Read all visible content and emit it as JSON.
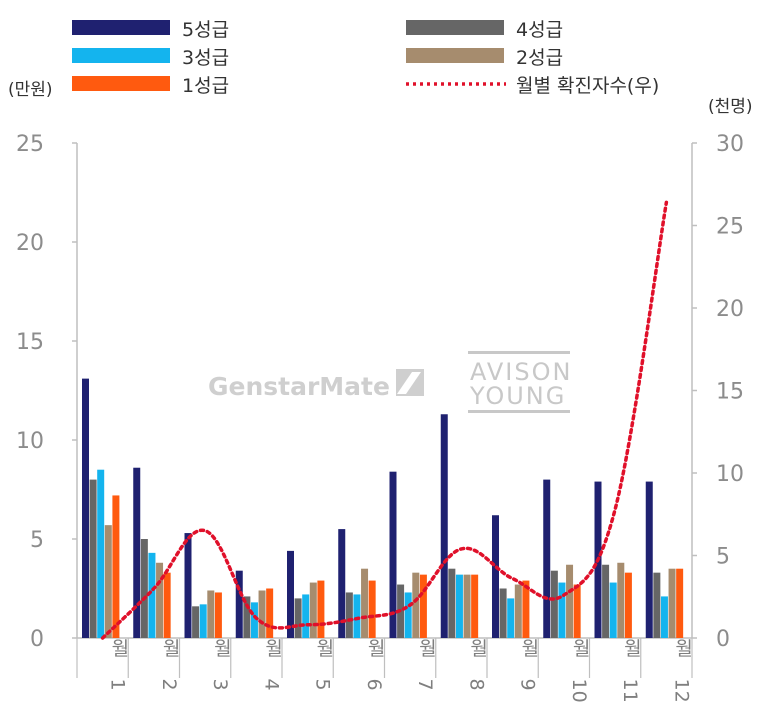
{
  "chart_data": {
    "type": "bar",
    "categories": [
      "1월",
      "2월",
      "3월",
      "4월",
      "5월",
      "6월",
      "7월",
      "8월",
      "9월",
      "10월",
      "11월",
      "12월"
    ],
    "category_numbers": [
      "1",
      "2",
      "3",
      "4",
      "5",
      "6",
      "7",
      "8",
      "9",
      "10",
      "11",
      "12"
    ],
    "category_unit": "월",
    "series": [
      {
        "name": "5성급",
        "color": "#1f2170",
        "axis": "left",
        "kind": "bar",
        "values": [
          13.1,
          8.6,
          5.3,
          3.4,
          4.4,
          5.5,
          8.4,
          11.3,
          6.2,
          8.0,
          7.9,
          7.9
        ]
      },
      {
        "name": "4성급",
        "color": "#666666",
        "axis": "left",
        "kind": "bar",
        "values": [
          8.0,
          5.0,
          1.6,
          2.1,
          2.0,
          2.3,
          2.7,
          3.5,
          2.5,
          3.4,
          3.7,
          3.3
        ]
      },
      {
        "name": "3성급",
        "color": "#14b4ee",
        "axis": "left",
        "kind": "bar",
        "values": [
          8.5,
          4.3,
          1.7,
          1.8,
          2.2,
          2.2,
          2.3,
          3.2,
          2.0,
          2.8,
          2.8,
          2.1
        ]
      },
      {
        "name": "2성급",
        "color": "#a68c6e",
        "axis": "left",
        "kind": "bar",
        "values": [
          5.7,
          3.8,
          2.4,
          2.4,
          2.8,
          3.5,
          3.3,
          3.2,
          2.7,
          3.7,
          3.8,
          3.5
        ]
      },
      {
        "name": "1성급",
        "color": "#ff5a0f",
        "axis": "left",
        "kind": "bar",
        "values": [
          7.2,
          3.3,
          2.3,
          2.5,
          2.9,
          2.9,
          3.2,
          3.2,
          2.9,
          2.7,
          3.3,
          3.5
        ]
      },
      {
        "name": "월별 확진자수(우)",
        "color": "#e0102a",
        "axis": "right",
        "kind": "line",
        "values": [
          0.0,
          3.0,
          6.5,
          1.2,
          0.8,
          1.2,
          2.0,
          5.4,
          3.6,
          2.6,
          7.8,
          26.4
        ]
      }
    ],
    "left_axis": {
      "unit": "(만원)",
      "ylim": [
        0,
        25
      ],
      "ticks": [
        "0",
        "5",
        "10",
        "15",
        "20",
        "25"
      ]
    },
    "right_axis": {
      "unit": "(천명)",
      "ylim": [
        0,
        30
      ],
      "ticks": [
        "0",
        "5",
        "10",
        "15",
        "20",
        "25",
        "30"
      ]
    },
    "watermarks": {
      "left": "GenstarMate",
      "right_line1": "AVISON",
      "right_line2": "YOUNG"
    }
  }
}
